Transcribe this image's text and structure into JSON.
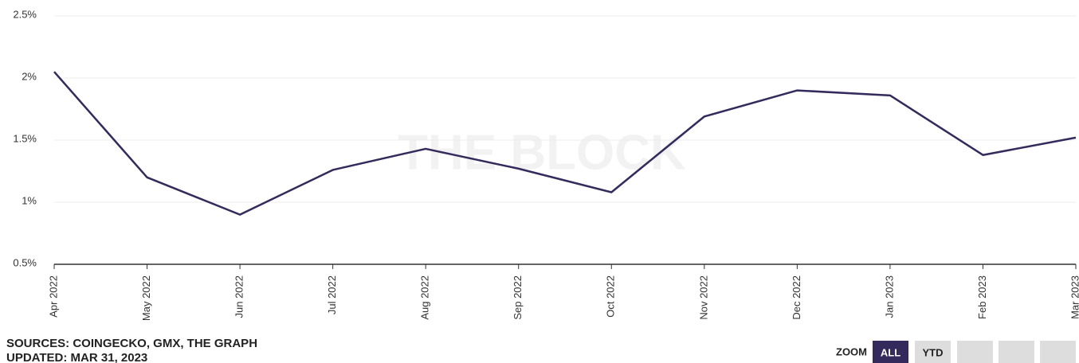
{
  "chart_data": {
    "type": "line",
    "watermark": "THE BLOCK",
    "categories": [
      "Apr 2022",
      "May 2022",
      "Jun 2022",
      "Jul 2022",
      "Aug 2022",
      "Sep 2022",
      "Oct 2022",
      "Nov 2022",
      "Dec 2022",
      "Jan 2023",
      "Feb 2023",
      "Mar 2023"
    ],
    "values": [
      2.05,
      1.2,
      0.9,
      1.26,
      1.43,
      1.27,
      1.08,
      1.69,
      1.9,
      1.86,
      1.38,
      1.52
    ],
    "color": "#352a5c",
    "ylim": [
      0.5,
      2.5
    ],
    "yticks": [
      {
        "value": 0.5,
        "label": "0.5%"
      },
      {
        "value": 1,
        "label": "1%"
      },
      {
        "value": 1.5,
        "label": "1.5%"
      },
      {
        "value": 2,
        "label": "2%"
      },
      {
        "value": 2.5,
        "label": "2.5%"
      }
    ],
    "grid": true,
    "sources": "SOURCES: COINGECKO, GMX, THE GRAPH",
    "updated": "UPDATED: MAR 31, 2023",
    "zoom": {
      "label": "ZOOM",
      "buttons": [
        "ALL",
        "YTD"
      ]
    }
  }
}
